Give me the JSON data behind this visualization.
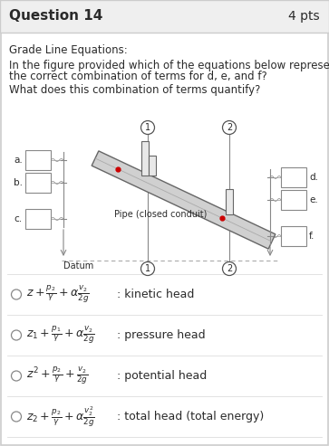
{
  "title": "Question 14",
  "pts": "4 pts",
  "header_bg": "#efefef",
  "body_bg": "#ffffff",
  "border_color": "#cccccc",
  "text_color": "#2a2a2a",
  "q1": "Grade Line Equations:",
  "q2a": "In the figure provided which of the equations below represents",
  "q2b": "the correct combination of terms for d, e, and f?",
  "q3": "What does this combination of terms quantify?",
  "options": [
    {
      "math": "z + \\frac{p_2}{\\gamma} + \\alpha\\frac{v_2}{2g}",
      "desc": ": kinetic head"
    },
    {
      "math": "z_1 + \\frac{p_1}{\\gamma} + \\alpha\\frac{v_2}{2g}",
      "desc": ": pressure head"
    },
    {
      "math": "z^2 + \\frac{p_2}{\\gamma} + \\frac{v_2}{2g}",
      "desc": ": potential head"
    },
    {
      "math": "z_2 + \\frac{p_2}{\\gamma} + \\alpha\\frac{v_2^2}{2g}",
      "desc": ": total head (total energy)"
    }
  ]
}
